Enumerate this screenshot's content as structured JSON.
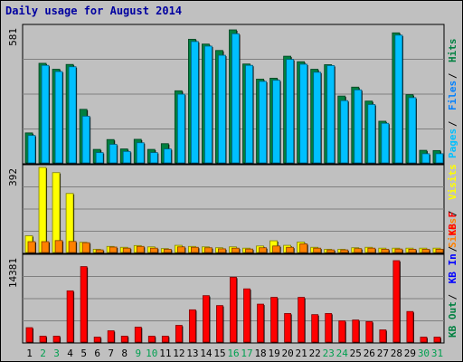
{
  "chart_data": {
    "type": "bar",
    "title": "Daily usage for August 2014",
    "categories": [
      "1",
      "2",
      "3",
      "4",
      "5",
      "6",
      "7",
      "8",
      "9",
      "10",
      "11",
      "12",
      "13",
      "14",
      "15",
      "16",
      "17",
      "18",
      "19",
      "20",
      "21",
      "22",
      "23",
      "24",
      "25",
      "26",
      "27",
      "28",
      "29",
      "30",
      "31"
    ],
    "weekend_days": [
      "2",
      "3",
      "9",
      "10",
      "16",
      "17",
      "23",
      "24",
      "30",
      "31"
    ],
    "panels": [
      {
        "id": "top",
        "max_label": "581",
        "ylim": [
          0,
          581
        ],
        "legend": [
          {
            "label": "Hits",
            "color": "#008040"
          },
          {
            "label": "Files",
            "color": "#0080ff"
          },
          {
            "label": "Pages",
            "color": "#00c0ff"
          }
        ],
        "series": [
          {
            "name": "Hits",
            "color": "#008040",
            "values": [
              131,
              435,
              409,
              430,
              234,
              59,
              102,
              61,
              103,
              59,
              84,
              315,
              540,
              519,
              491,
              581,
              432,
              366,
              370,
              466,
              442,
              409,
              429,
              292,
              331,
              270,
              182,
              568,
              298,
              55,
              54
            ]
          },
          {
            "name": "Files",
            "color": "#00c0ff",
            "values": [
              120,
              426,
              399,
              420,
              204,
              45,
              81,
              50,
              88,
              45,
              61,
              300,
              530,
              510,
              470,
              564,
              426,
              356,
              361,
              452,
              431,
              396,
              425,
              272,
              319,
              255,
              173,
              558,
              285,
              40,
              40
            ]
          }
        ]
      },
      {
        "id": "middle",
        "max_label": "392",
        "ylim": [
          0,
          392
        ],
        "legend": [
          {
            "label": "Visits",
            "color": "#ffff00"
          },
          {
            "label": "Sites",
            "color": "#ff8000"
          }
        ],
        "series": [
          {
            "name": "Visits",
            "color": "#ffff00",
            "values": [
              77,
              392,
              368,
              272,
              47,
              15,
              28,
              24,
              32,
              26,
              18,
              33,
              28,
              26,
              22,
              26,
              20,
              30,
              54,
              33,
              48,
              24,
              15,
              15,
              22,
              24,
              20,
              20,
              20,
              20,
              20
            ]
          },
          {
            "name": "Sites",
            "color": "#ff8000",
            "values": [
              50,
              50,
              55,
              51,
              45,
              12,
              25,
              20,
              28,
              20,
              15,
              26,
              24,
              22,
              17,
              20,
              16,
              22,
              30,
              24,
              40,
              20,
              12,
              12,
              18,
              20,
              15,
              16,
              15,
              15,
              15
            ]
          }
        ]
      },
      {
        "id": "bottom",
        "max_label": "14381",
        "ylim": [
          0,
          14381
        ],
        "legend": [
          {
            "label": "KB F",
            "color": "#ff0000"
          },
          {
            "label": "KB In",
            "color": "#0000ff"
          },
          {
            "label": "KB Out",
            "color": "#008040"
          }
        ],
        "series": [
          {
            "name": "KB F",
            "color": "#ff0000",
            "values": [
              2550,
              1050,
              1050,
              9050,
              13330,
              880,
              2000,
              1050,
              2650,
              1050,
              1050,
              2950,
              5700,
              8200,
              6450,
              11450,
              9400,
              6700,
              7900,
              5050,
              7900,
              4850,
              5050,
              3750,
              3900,
              3620,
              2160,
              14381,
              5400,
              880,
              880
            ]
          }
        ]
      }
    ]
  }
}
